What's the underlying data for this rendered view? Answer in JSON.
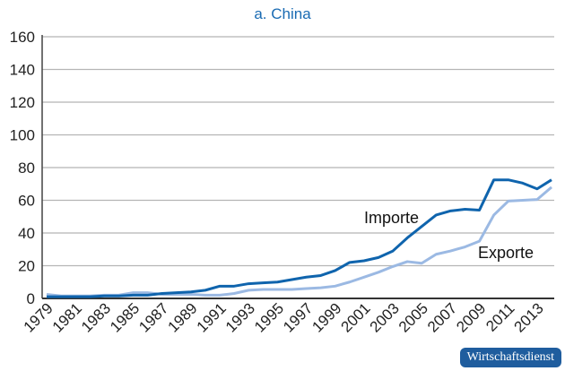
{
  "chart_data": {
    "type": "line",
    "title": "a. China",
    "x": [
      1979,
      1980,
      1981,
      1982,
      1983,
      1984,
      1985,
      1986,
      1987,
      1988,
      1989,
      1990,
      1991,
      1992,
      1993,
      1994,
      1995,
      1996,
      1997,
      1998,
      1999,
      2000,
      2001,
      2002,
      2003,
      2004,
      2005,
      2006,
      2007,
      2008,
      2009,
      2010,
      2011,
      2012,
      2013,
      2014
    ],
    "x_tick_labels": [
      "1979",
      "1981",
      "1983",
      "1985",
      "1987",
      "1989",
      "1991",
      "1993",
      "1995",
      "1997",
      "1999",
      "2001",
      "2003",
      "2005",
      "2007",
      "2009",
      "2011",
      "2013"
    ],
    "ylim": [
      0,
      160
    ],
    "y_ticks": [
      0,
      20,
      40,
      60,
      80,
      100,
      120,
      140,
      160
    ],
    "grid": true,
    "series": [
      {
        "name": "Importe",
        "color": "#0f64ad",
        "values": [
          1,
          1,
          1,
          1,
          1.5,
          1.5,
          2,
          2,
          3,
          3.5,
          4,
          5,
          7.5,
          7.5,
          9,
          9.5,
          10,
          11.5,
          13,
          14,
          17,
          22,
          23,
          25,
          29,
          37,
          44,
          51,
          53.5,
          54.5,
          54,
          72.5,
          72.5,
          70.5,
          67,
          72.5
        ]
      },
      {
        "name": "Exporte",
        "color": "#9bb9e3",
        "values": [
          2.5,
          1.5,
          1.5,
          1.5,
          2,
          2,
          3.5,
          3.5,
          2.5,
          2.5,
          2.5,
          2,
          2,
          3,
          5,
          5.5,
          5.5,
          5.5,
          6,
          6.5,
          7.5,
          10,
          13,
          16,
          19.5,
          22.5,
          21.5,
          27,
          29,
          31.5,
          35,
          51,
          59.5,
          60,
          60.5,
          68
        ]
      }
    ]
  },
  "badge": "Wirtschaftsdienst"
}
